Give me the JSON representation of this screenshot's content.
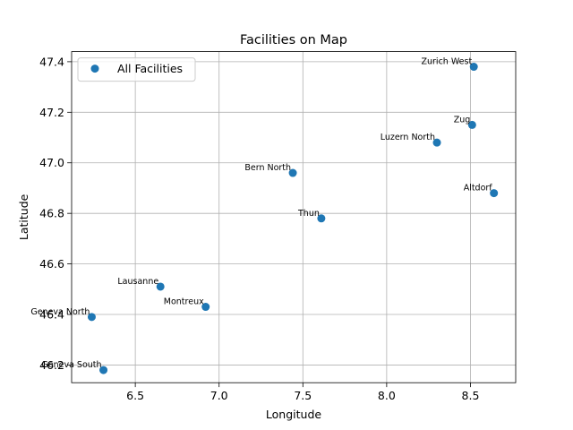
{
  "chart_data": {
    "type": "scatter",
    "title": "Facilities on Map",
    "xlabel": "Longitude",
    "ylabel": "Latitude",
    "xlim": [
      6.12,
      8.77
    ],
    "ylim": [
      46.13,
      47.44
    ],
    "xticks": [
      6.5,
      7.0,
      7.5,
      8.0,
      8.5
    ],
    "yticks": [
      46.2,
      46.4,
      46.6,
      46.8,
      47.0,
      47.2,
      47.4
    ],
    "xtick_labels": [
      "6.5",
      "7.0",
      "7.5",
      "8.0",
      "8.5"
    ],
    "ytick_labels": [
      "46.2",
      "46.4",
      "46.6",
      "46.8",
      "47.0",
      "47.2",
      "47.4"
    ],
    "grid": true,
    "legend": {
      "placement": "top-left",
      "entries": [
        "All Facilities"
      ]
    },
    "series": [
      {
        "name": "All Facilities",
        "color": "#1f77b4",
        "points": [
          {
            "label": "Zurich West",
            "x": 8.52,
            "y": 47.38
          },
          {
            "label": "Zug",
            "x": 8.51,
            "y": 47.15
          },
          {
            "label": "Luzern North",
            "x": 8.3,
            "y": 47.08
          },
          {
            "label": "Bern North",
            "x": 7.44,
            "y": 46.96
          },
          {
            "label": "Altdorf",
            "x": 8.64,
            "y": 46.88
          },
          {
            "label": "Thun",
            "x": 7.61,
            "y": 46.78
          },
          {
            "label": "Lausanne",
            "x": 6.65,
            "y": 46.51
          },
          {
            "label": "Montreux",
            "x": 6.92,
            "y": 46.43
          },
          {
            "label": "Geneva North",
            "x": 6.24,
            "y": 46.39
          },
          {
            "label": "Geneva South",
            "x": 6.31,
            "y": 46.18
          }
        ]
      }
    ]
  }
}
